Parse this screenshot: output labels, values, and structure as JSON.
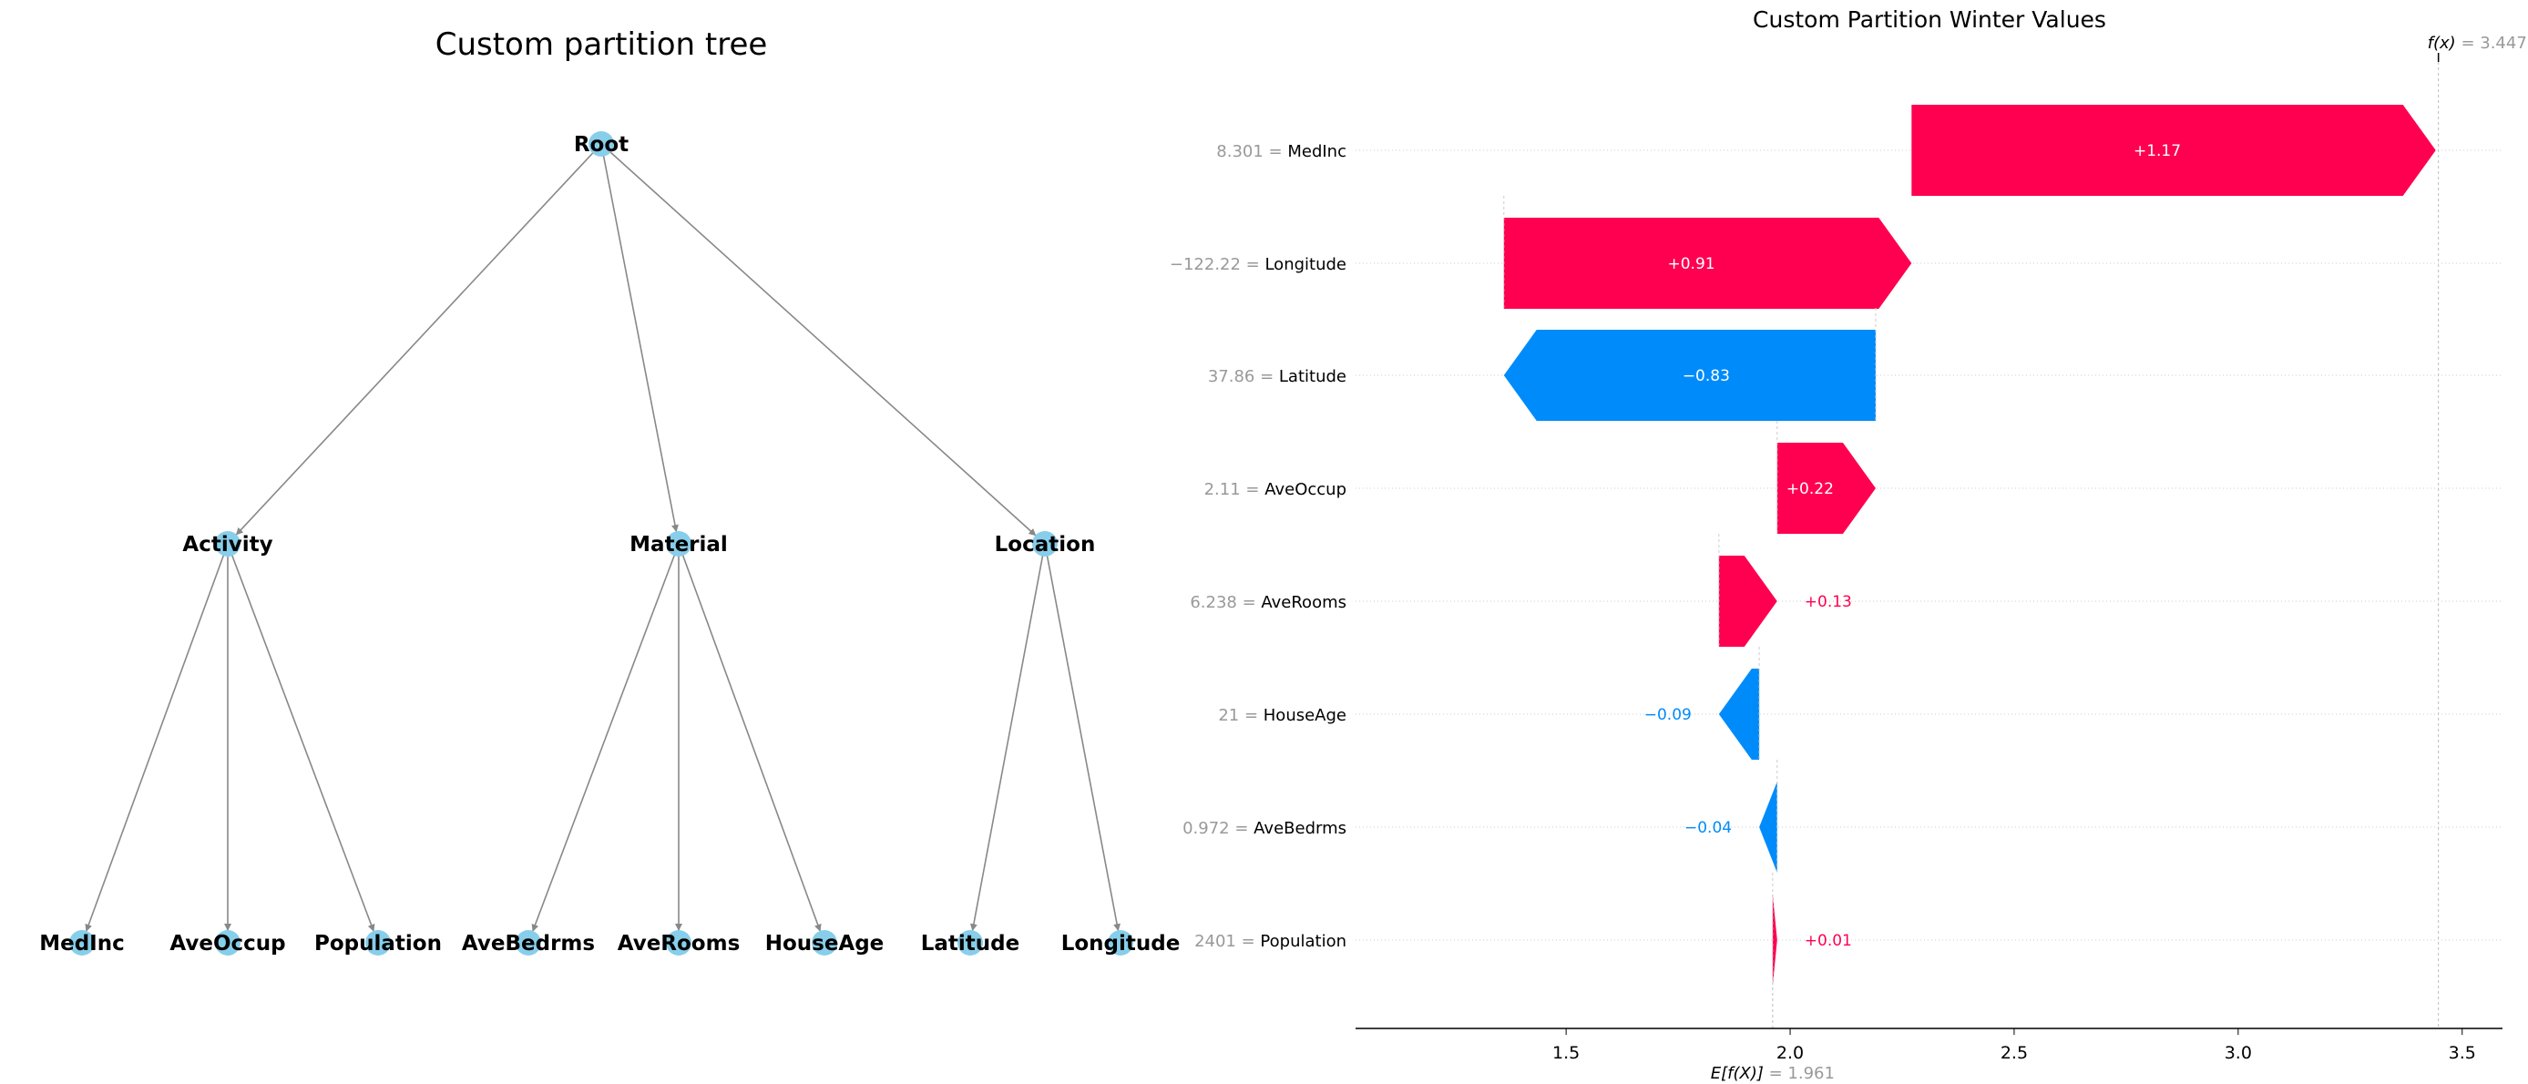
{
  "chart_data": [
    {
      "type": "tree",
      "title": "Custom partition tree",
      "root": {
        "label": "Root",
        "children": [
          {
            "label": "Activity",
            "children": [
              {
                "label": "MedInc"
              },
              {
                "label": "AveOccup"
              },
              {
                "label": "Population"
              }
            ]
          },
          {
            "label": "Material",
            "children": [
              {
                "label": "AveBedrms"
              },
              {
                "label": "AveRooms"
              },
              {
                "label": "HouseAge"
              }
            ]
          },
          {
            "label": "Location",
            "children": [
              {
                "label": "Latitude"
              },
              {
                "label": "Longitude"
              }
            ]
          }
        ]
      },
      "node_color": "#87ceeb",
      "edge_color": "#888888"
    },
    {
      "type": "waterfall",
      "title": "Custom Partition Winter Values",
      "base_value": 1.961,
      "base_label": "E[f(X)]",
      "base_value_text": "= 1.961",
      "output_value": 3.447,
      "output_label": "f(x)",
      "output_value_text": "= 3.447",
      "xlim": [
        1.03,
        3.59
      ],
      "xticks": [
        "1.5",
        "2.0",
        "2.5",
        "3.0",
        "3.5"
      ],
      "xtick_values": [
        1.5,
        2.0,
        2.5,
        3.0,
        3.5
      ],
      "features": [
        {
          "value": "8.301",
          "name": "MedInc",
          "contribution": 1.17,
          "label": "+1.17"
        },
        {
          "value": "−122.22",
          "name": "Longitude",
          "contribution": 0.91,
          "label": "+0.91"
        },
        {
          "value": "37.86",
          "name": "Latitude",
          "contribution": -0.83,
          "label": "−0.83"
        },
        {
          "value": "2.11",
          "name": "AveOccup",
          "contribution": 0.22,
          "label": "+0.22"
        },
        {
          "value": "6.238",
          "name": "AveRooms",
          "contribution": 0.13,
          "label": "+0.13"
        },
        {
          "value": "21",
          "name": "HouseAge",
          "contribution": -0.09,
          "label": "−0.09"
        },
        {
          "value": "0.972",
          "name": "AveBedrms",
          "contribution": -0.04,
          "label": "−0.04"
        },
        {
          "value": "2401",
          "name": "Population",
          "contribution": 0.01,
          "label": "+0.01"
        }
      ],
      "positive_color": "#ff0051",
      "negative_color": "#008bfb",
      "value_color": "#999999"
    }
  ]
}
